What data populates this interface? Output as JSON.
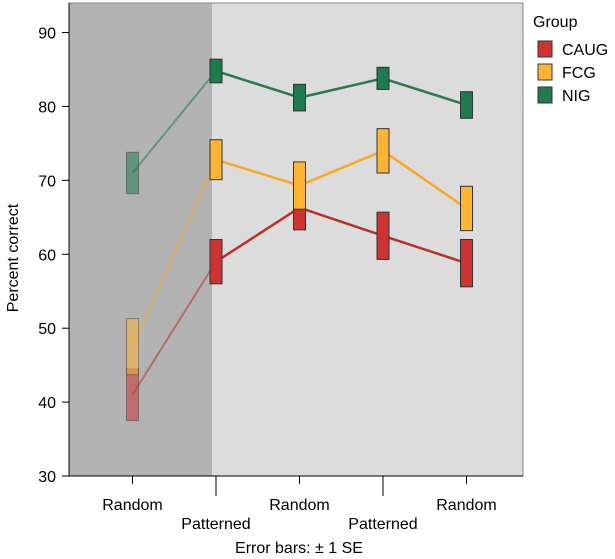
{
  "chart_data": {
    "type": "line",
    "x_positions": [
      1,
      2,
      3,
      4,
      5
    ],
    "categories": [
      "Random",
      "Patterned",
      "Random",
      "Patterned",
      "Random"
    ],
    "ylabel": "Percent correct",
    "ylim": [
      30,
      94
    ],
    "yticks": [
      30,
      40,
      50,
      60,
      70,
      80,
      90
    ],
    "footnote": "Error bars: ± 1 SE",
    "legend": {
      "title": "Group",
      "placement": "right-top"
    },
    "shaded_region": {
      "x_from": 0.55,
      "x_to": 2,
      "color": "#b3b3b3"
    },
    "plot_background": "#dcdcdc",
    "series": [
      {
        "name": "CAUG",
        "color": "#cd3333",
        "line_color": "#b8312b",
        "values": [
          41.0,
          59.0,
          66.3,
          62.5,
          58.8
        ],
        "se": [
          3.5,
          3.0,
          3.0,
          3.2,
          3.2
        ]
      },
      {
        "name": "FCG",
        "color": "#ffb533",
        "line_color": "#f9a825",
        "values": [
          47.5,
          72.8,
          69.3,
          74.0,
          66.2
        ],
        "se": [
          3.8,
          2.7,
          3.2,
          3.0,
          3.0
        ]
      },
      {
        "name": "NIG",
        "color": "#1f7a4d",
        "line_color": "#267a4c",
        "values": [
          71.0,
          84.8,
          81.2,
          83.8,
          80.2
        ],
        "se": [
          2.8,
          1.6,
          1.8,
          1.5,
          1.8
        ]
      }
    ]
  }
}
